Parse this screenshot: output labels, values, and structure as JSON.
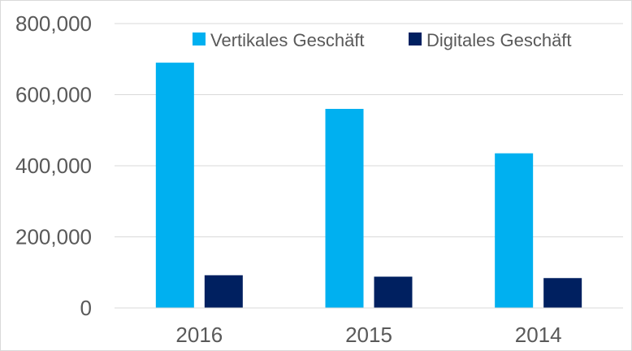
{
  "chart_data": {
    "type": "bar",
    "categories": [
      "2016",
      "2015",
      "2014"
    ],
    "series": [
      {
        "name": "Vertikales Geschäft",
        "values": [
          690000,
          560000,
          435000
        ],
        "color": "#00B0F0"
      },
      {
        "name": "Digitales Geschäft",
        "values": [
          92000,
          88000,
          84000
        ],
        "color": "#002060"
      }
    ],
    "ylim": [
      0,
      800000
    ],
    "yticks": [
      0,
      200000,
      400000,
      600000,
      800000
    ],
    "ytick_labels": [
      "0",
      "200,000",
      "400,000",
      "600,000",
      "800,000"
    ],
    "grid": true,
    "legend_position": "top-right",
    "title": "",
    "xlabel": "",
    "ylabel": ""
  }
}
